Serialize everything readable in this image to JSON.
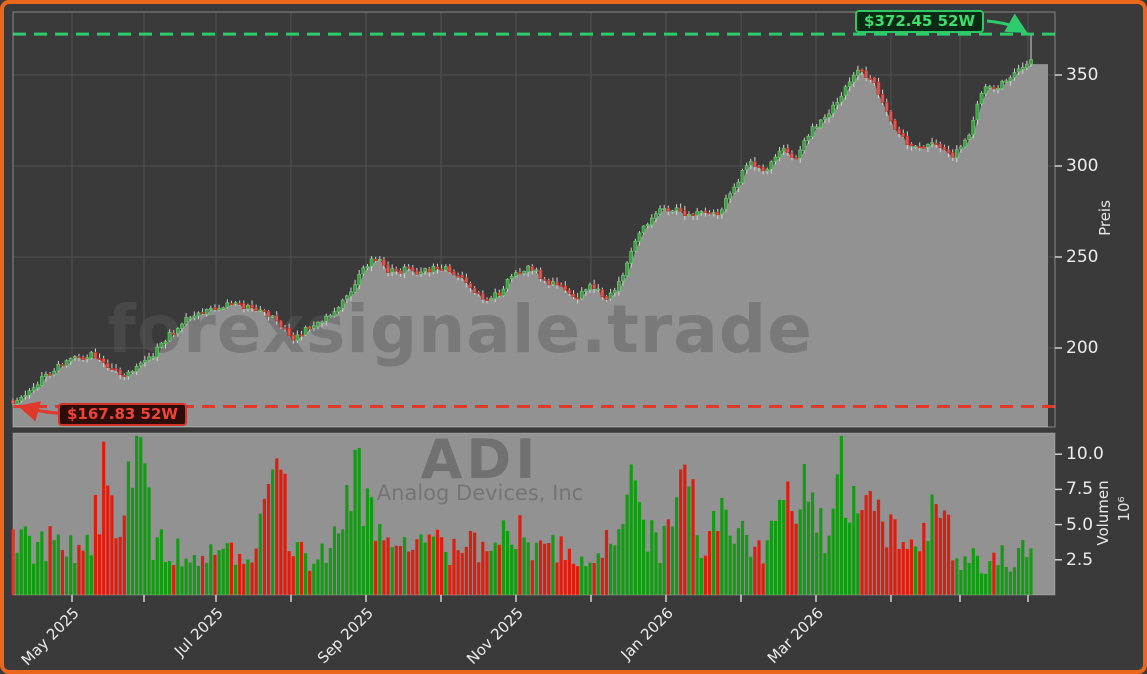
{
  "watermarks": {
    "site": "forexsignale.trade",
    "symbol": "ADI",
    "company": "Analog Devices, Inc"
  },
  "annotations": {
    "high_label": "$372.45 52W",
    "low_label": "$167.83 52W"
  },
  "axes": {
    "price": {
      "title": "Preis",
      "tick_labels": [
        "350",
        "300",
        "250",
        "200"
      ],
      "tick_values": [
        350,
        300,
        250,
        200
      ]
    },
    "volume": {
      "title": "Volumen",
      "unit": "10⁶",
      "tick_labels": [
        "10.0",
        "7.5",
        "5.0",
        "2.5"
      ],
      "tick_values": [
        10.0,
        7.5,
        5.0,
        2.5
      ]
    },
    "x": {
      "month_labels": [
        "May 2025",
        "Jul 2025",
        "Sep 2025",
        "Nov 2025",
        "Jan 2026",
        "Mar 2026"
      ]
    }
  },
  "chart_data": {
    "type": "candlestick+volume",
    "symbol": "ADI",
    "company": "Analog Devices, Inc",
    "period": "52 weeks, Apr 2025 - Apr 2026, daily bars",
    "high_52w": 372.45,
    "low_52w": 167.83,
    "last_close": 358.5,
    "price_axis_range": [
      157,
      385
    ],
    "volume_axis_range_millions": [
      0,
      11.5
    ],
    "close_samples": [
      170,
      176,
      184,
      190,
      194,
      196,
      191,
      186,
      189,
      197,
      207,
      215,
      220,
      223,
      224,
      223,
      221,
      213,
      205,
      212,
      217,
      224,
      238,
      251,
      242,
      243,
      241,
      245,
      242,
      236,
      227,
      230,
      241,
      245,
      237,
      233,
      228,
      234,
      226,
      242,
      263,
      275,
      277,
      273,
      275,
      273,
      288,
      302,
      298,
      309,
      305,
      320,
      329,
      341,
      353,
      345,
      325,
      313,
      310,
      313,
      305,
      317,
      344,
      344,
      352,
      358
    ],
    "volume_samples_millions": [
      4.5,
      3.6,
      3.9,
      4.2,
      3.4,
      4.0,
      9.5,
      4.6,
      11.2,
      3.6,
      3.2,
      2.9,
      3.5,
      3.0,
      3.4,
      2.8,
      5.0,
      7.9,
      3.2,
      2.6,
      3.3,
      4.8,
      8.6,
      5.4,
      2.9,
      3.1,
      3.6,
      3.9,
      3.0,
      3.3,
      3.8,
      3.5,
      5.2,
      3.4,
      3.6,
      3.1,
      2.7,
      3.5,
      3.9,
      7.2,
      6.6,
      3.4,
      4.5,
      9.7,
      1.9,
      5.6,
      3.2,
      4.3,
      3.0,
      5.4,
      6.8,
      7.9,
      4.1,
      8.8,
      4.7,
      6.0,
      4.3,
      2.9,
      3.4,
      7.0,
      3.1,
      2.6,
      2.4,
      2.6,
      2.2,
      5.0
    ],
    "grid": "on",
    "styles": {
      "up_color": "#3fa045",
      "down_color": "#e6554d",
      "volume_up_color": "#149b14",
      "volume_down_color": "#df1d0e",
      "fill_color": "#929292",
      "high_line_color": "#2ecb6d",
      "low_line_color": "#e0392b",
      "frame_color": "#ec671b",
      "background": "#3a3a3a"
    }
  }
}
